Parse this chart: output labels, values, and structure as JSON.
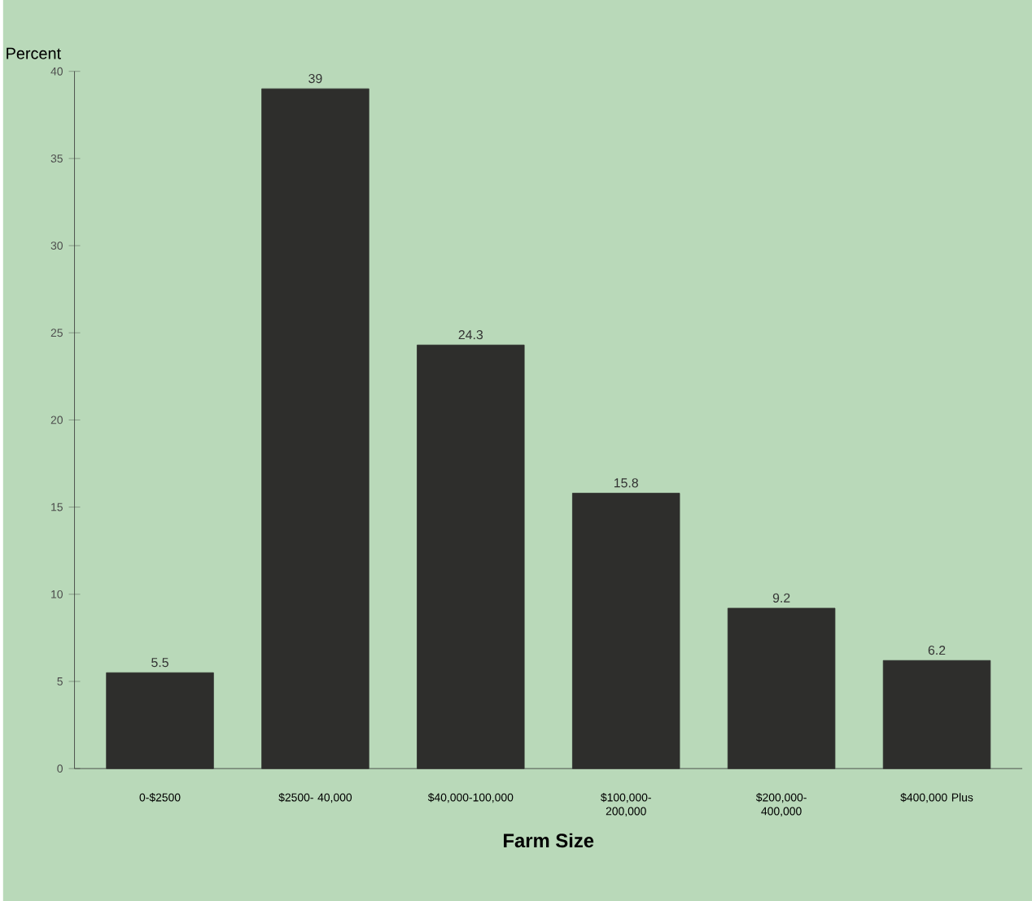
{
  "chart_data": {
    "type": "bar",
    "xlabel": "Farm Size",
    "ylabel": "Percent",
    "categories": [
      "0-$2500",
      "$2500- 40,000",
      "$40,000-100,000",
      "$100,000-200,000",
      "$200,000-400,000",
      "$400,000 Plus"
    ],
    "values": [
      5.5,
      39,
      24.3,
      15.8,
      9.2,
      6.2
    ],
    "color": "#2e2e2c",
    "ylim": [
      0,
      40
    ],
    "yticks": [
      0,
      5,
      10,
      15,
      20,
      25,
      30,
      35,
      40
    ],
    "grid": false,
    "data_labels": true
  }
}
